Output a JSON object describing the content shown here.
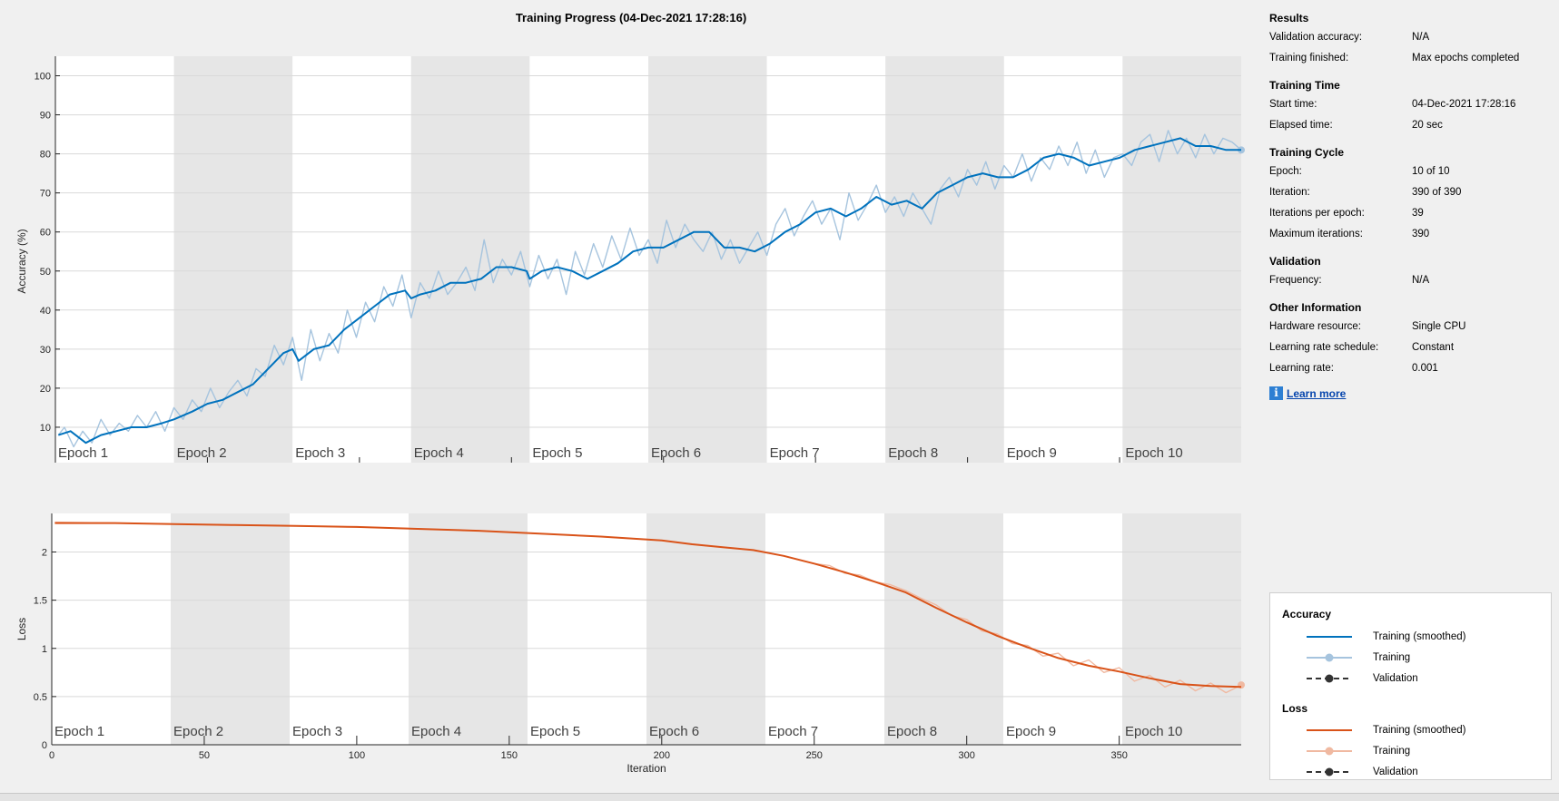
{
  "title": "Training Progress (04-Dec-2021 17:28:16)",
  "chart_data": [
    {
      "type": "line",
      "ylabel": "Accuracy (%)",
      "xlabel": "Iteration",
      "xlim": [
        0,
        390
      ],
      "ylim": [
        0,
        105
      ],
      "xticks": [
        0,
        50,
        100,
        150,
        200,
        250,
        300,
        350
      ],
      "yticks": [
        0,
        10,
        20,
        30,
        40,
        50,
        60,
        70,
        80,
        90,
        100
      ],
      "grid": true,
      "epoch_labels": [
        "Epoch 1",
        "Epoch 2",
        "Epoch 3",
        "Epoch 4",
        "Epoch 5",
        "Epoch 6",
        "Epoch 7",
        "Epoch 8",
        "Epoch 9",
        "Epoch 10"
      ],
      "iterations_per_epoch": 39,
      "series": [
        {
          "name": "Training (smoothed)",
          "color": "#0072bd",
          "x": [
            1,
            5,
            10,
            15,
            20,
            25,
            30,
            35,
            39,
            45,
            50,
            55,
            60,
            65,
            70,
            75,
            78,
            80,
            85,
            90,
            95,
            100,
            105,
            110,
            115,
            117,
            120,
            125,
            130,
            135,
            140,
            145,
            150,
            155,
            156,
            160,
            165,
            170,
            175,
            180,
            185,
            190,
            195,
            200,
            205,
            210,
            215,
            220,
            225,
            230,
            235,
            240,
            245,
            250,
            255,
            260,
            265,
            270,
            275,
            280,
            285,
            290,
            295,
            300,
            305,
            310,
            315,
            320,
            325,
            330,
            335,
            340,
            345,
            350,
            355,
            360,
            365,
            370,
            375,
            380,
            385,
            390
          ],
          "y": [
            8,
            9,
            6,
            8,
            9,
            10,
            10,
            11,
            12,
            14,
            16,
            17,
            19,
            21,
            25,
            29,
            30,
            27,
            30,
            31,
            35,
            38,
            41,
            44,
            45,
            43,
            44,
            45,
            47,
            47,
            48,
            51,
            51,
            50,
            48,
            50,
            51,
            50,
            48,
            50,
            52,
            55,
            56,
            56,
            58,
            60,
            60,
            56,
            56,
            55,
            57,
            60,
            62,
            65,
            66,
            64,
            66,
            69,
            67,
            68,
            66,
            70,
            72,
            74,
            75,
            74,
            74,
            76,
            79,
            80,
            79,
            77,
            78,
            79,
            81,
            82,
            83,
            84,
            82,
            82,
            81,
            81
          ]
        },
        {
          "name": "Training",
          "color": "#a6c4de",
          "x": [
            1,
            3,
            6,
            9,
            12,
            15,
            18,
            21,
            24,
            27,
            30,
            33,
            36,
            39,
            42,
            45,
            48,
            51,
            54,
            57,
            60,
            63,
            66,
            69,
            72,
            75,
            78,
            81,
            84,
            87,
            90,
            93,
            96,
            99,
            102,
            105,
            108,
            111,
            114,
            117,
            120,
            123,
            126,
            129,
            132,
            135,
            138,
            141,
            144,
            147,
            150,
            153,
            156,
            159,
            162,
            165,
            168,
            171,
            174,
            177,
            180,
            183,
            186,
            189,
            192,
            195,
            198,
            201,
            204,
            207,
            210,
            213,
            216,
            219,
            222,
            225,
            228,
            231,
            234,
            237,
            240,
            243,
            246,
            249,
            252,
            255,
            258,
            261,
            264,
            267,
            270,
            273,
            276,
            279,
            282,
            285,
            288,
            291,
            294,
            297,
            300,
            303,
            306,
            309,
            312,
            315,
            318,
            321,
            324,
            327,
            330,
            333,
            336,
            339,
            342,
            345,
            348,
            351,
            354,
            357,
            360,
            363,
            366,
            369,
            372,
            375,
            378,
            381,
            384,
            387,
            390
          ],
          "y": [
            8,
            10,
            5,
            9,
            6,
            12,
            8,
            11,
            9,
            13,
            10,
            14,
            9,
            15,
            12,
            17,
            14,
            20,
            15,
            19,
            22,
            18,
            25,
            23,
            31,
            26,
            33,
            22,
            35,
            27,
            34,
            29,
            40,
            33,
            42,
            37,
            46,
            41,
            49,
            38,
            47,
            43,
            50,
            44,
            47,
            51,
            45,
            58,
            47,
            53,
            49,
            55,
            46,
            54,
            48,
            53,
            44,
            55,
            49,
            57,
            51,
            59,
            53,
            61,
            54,
            58,
            52,
            63,
            56,
            62,
            58,
            55,
            60,
            53,
            58,
            52,
            56,
            60,
            54,
            62,
            66,
            59,
            64,
            68,
            62,
            66,
            58,
            70,
            63,
            67,
            72,
            65,
            69,
            64,
            70,
            66,
            62,
            71,
            74,
            69,
            76,
            72,
            78,
            71,
            77,
            74,
            80,
            73,
            79,
            76,
            82,
            77,
            83,
            75,
            81,
            74,
            79,
            80,
            77,
            83,
            85,
            78,
            86,
            80,
            84,
            79,
            85,
            80,
            84,
            83,
            81
          ]
        },
        {
          "name": "Validation",
          "color": "#333333",
          "x": [],
          "y": []
        }
      ]
    },
    {
      "type": "line",
      "ylabel": "Loss",
      "xlabel": "Iteration",
      "xlim": [
        0,
        390
      ],
      "ylim": [
        0,
        2.4
      ],
      "xticks": [
        0,
        50,
        100,
        150,
        200,
        250,
        300,
        350
      ],
      "yticks": [
        0,
        0.5,
        1,
        1.5,
        2
      ],
      "ytick_labels": [
        "0",
        "0.5",
        "1",
        "1.5",
        "2"
      ],
      "grid": true,
      "epoch_labels": [
        "Epoch 1",
        "Epoch 2",
        "Epoch 3",
        "Epoch 4",
        "Epoch 5",
        "Epoch 6",
        "Epoch 7",
        "Epoch 8",
        "Epoch 9",
        "Epoch 10"
      ],
      "iterations_per_epoch": 39,
      "series": [
        {
          "name": "Training (smoothed)",
          "color": "#d95319",
          "x": [
            1,
            20,
            40,
            60,
            80,
            100,
            120,
            140,
            160,
            180,
            200,
            210,
            220,
            230,
            240,
            250,
            260,
            270,
            280,
            290,
            300,
            310,
            320,
            330,
            340,
            350,
            360,
            370,
            380,
            390
          ],
          "y": [
            2.3,
            2.3,
            2.29,
            2.28,
            2.27,
            2.26,
            2.24,
            2.22,
            2.19,
            2.16,
            2.12,
            2.08,
            2.05,
            2.02,
            1.96,
            1.88,
            1.79,
            1.69,
            1.58,
            1.42,
            1.27,
            1.13,
            1.01,
            0.9,
            0.82,
            0.76,
            0.69,
            0.63,
            0.61,
            0.6
          ]
        },
        {
          "name": "Training",
          "color": "#f0b9a1",
          "x": [
            1,
            20,
            40,
            60,
            80,
            100,
            120,
            140,
            160,
            180,
            200,
            210,
            220,
            230,
            240,
            250,
            255,
            260,
            265,
            270,
            275,
            280,
            285,
            290,
            295,
            300,
            305,
            310,
            315,
            320,
            325,
            330,
            335,
            340,
            345,
            350,
            355,
            360,
            365,
            370,
            375,
            380,
            385,
            390
          ],
          "y": [
            2.31,
            2.3,
            2.29,
            2.28,
            2.27,
            2.26,
            2.24,
            2.22,
            2.19,
            2.16,
            2.12,
            2.08,
            2.05,
            2.02,
            1.96,
            1.88,
            1.86,
            1.78,
            1.76,
            1.69,
            1.66,
            1.6,
            1.52,
            1.45,
            1.34,
            1.3,
            1.18,
            1.15,
            1.05,
            1.03,
            0.92,
            0.95,
            0.82,
            0.88,
            0.75,
            0.8,
            0.66,
            0.72,
            0.6,
            0.67,
            0.56,
            0.64,
            0.54,
            0.62
          ]
        },
        {
          "name": "Validation",
          "color": "#333333",
          "x": [],
          "y": []
        }
      ]
    }
  ],
  "info": {
    "sections": [
      {
        "title": "Results",
        "rows": [
          {
            "key": "Validation accuracy:",
            "value": "N/A"
          },
          {
            "key": "Training finished:",
            "value": "Max epochs completed"
          }
        ]
      },
      {
        "title": "Training Time",
        "rows": [
          {
            "key": "Start time:",
            "value": "04-Dec-2021 17:28:16"
          },
          {
            "key": "Elapsed time:",
            "value": "20 sec"
          }
        ]
      },
      {
        "title": "Training Cycle",
        "rows": [
          {
            "key": "Epoch:",
            "value": "10 of 10"
          },
          {
            "key": "Iteration:",
            "value": "390 of 390"
          },
          {
            "key": "Iterations per epoch:",
            "value": "39"
          },
          {
            "key": "Maximum iterations:",
            "value": "390"
          }
        ]
      },
      {
        "title": "Validation",
        "rows": [
          {
            "key": "Frequency:",
            "value": "N/A"
          }
        ]
      },
      {
        "title": "Other Information",
        "rows": [
          {
            "key": "Hardware resource:",
            "value": "Single CPU"
          },
          {
            "key": "Learning rate schedule:",
            "value": "Constant"
          },
          {
            "key": "Learning rate:",
            "value": "0.001"
          }
        ]
      }
    ],
    "learn_more": "Learn more",
    "learn_more_icon": "info-icon"
  },
  "legend": {
    "accuracy_title": "Accuracy",
    "loss_title": "Loss",
    "accuracy_items": [
      {
        "label": "Training (smoothed)",
        "color": "#0072bd",
        "style": "solid"
      },
      {
        "label": "Training",
        "color": "#a6c4de",
        "style": "marker"
      },
      {
        "label": "Validation",
        "color": "#333333",
        "style": "dashed-marker"
      }
    ],
    "loss_items": [
      {
        "label": "Training (smoothed)",
        "color": "#d95319",
        "style": "solid"
      },
      {
        "label": "Training",
        "color": "#f0b9a1",
        "style": "marker"
      },
      {
        "label": "Validation",
        "color": "#333333",
        "style": "dashed-marker"
      }
    ]
  }
}
